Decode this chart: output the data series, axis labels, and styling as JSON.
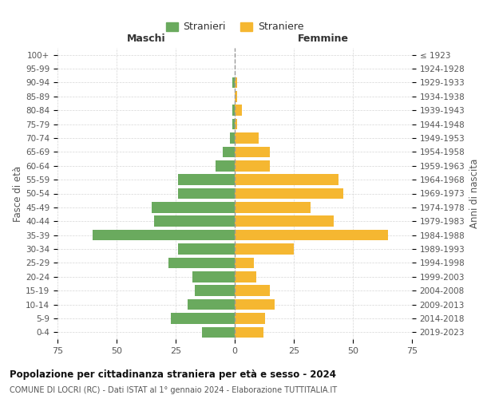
{
  "age_groups": [
    "0-4",
    "5-9",
    "10-14",
    "15-19",
    "20-24",
    "25-29",
    "30-34",
    "35-39",
    "40-44",
    "45-49",
    "50-54",
    "55-59",
    "60-64",
    "65-69",
    "70-74",
    "75-79",
    "80-84",
    "85-89",
    "90-94",
    "95-99",
    "100+"
  ],
  "birth_years": [
    "2019-2023",
    "2014-2018",
    "2009-2013",
    "2004-2008",
    "1999-2003",
    "1994-1998",
    "1989-1993",
    "1984-1988",
    "1979-1983",
    "1974-1978",
    "1969-1973",
    "1964-1968",
    "1959-1963",
    "1954-1958",
    "1949-1953",
    "1944-1948",
    "1939-1943",
    "1934-1938",
    "1929-1933",
    "1924-1928",
    "≤ 1923"
  ],
  "maschi": [
    14,
    27,
    20,
    17,
    18,
    28,
    24,
    60,
    34,
    35,
    24,
    24,
    8,
    5,
    2,
    1,
    1,
    0,
    1,
    0,
    0
  ],
  "femmine": [
    12,
    13,
    17,
    15,
    9,
    8,
    25,
    65,
    42,
    32,
    46,
    44,
    15,
    15,
    10,
    1,
    3,
    1,
    1,
    0,
    0
  ],
  "color_maschi": "#6aaa5e",
  "color_femmine": "#f5b731",
  "title": "Popolazione per cittadinanza straniera per età e sesso - 2024",
  "subtitle": "COMUNE DI LOCRI (RC) - Dati ISTAT al 1° gennaio 2024 - Elaborazione TUTTITALIA.IT",
  "label_maschi": "Stranieri",
  "label_femmine": "Straniere",
  "xlabel_left": "Maschi",
  "xlabel_right": "Femmine",
  "ylabel_left": "Fasce di età",
  "ylabel_right": "Anni di nascita",
  "xlim": 75,
  "bg_color": "#ffffff",
  "grid_color": "#cccccc"
}
